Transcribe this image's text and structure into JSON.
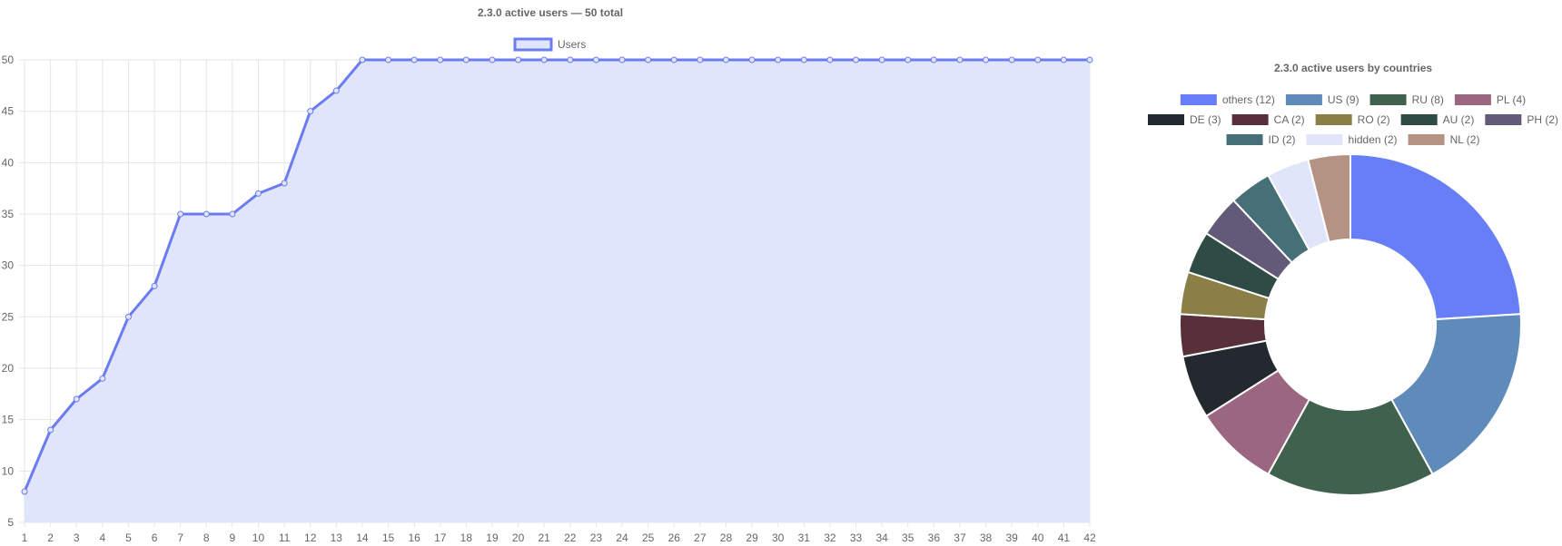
{
  "chart_data": [
    {
      "type": "area",
      "title": "2.3.0 active users — 50 total",
      "x": [
        1,
        2,
        3,
        4,
        5,
        6,
        7,
        8,
        9,
        10,
        11,
        12,
        13,
        14,
        15,
        16,
        17,
        18,
        19,
        20,
        21,
        22,
        23,
        24,
        25,
        26,
        27,
        28,
        29,
        30,
        31,
        32,
        33,
        34,
        35,
        36,
        37,
        38,
        39,
        40,
        41,
        42
      ],
      "series": [
        {
          "name": "Users",
          "values": [
            8,
            14,
            17,
            19,
            25,
            28,
            35,
            35,
            35,
            37,
            38,
            45,
            47,
            50,
            50,
            50,
            50,
            50,
            50,
            50,
            50,
            50,
            50,
            50,
            50,
            50,
            50,
            50,
            50,
            50,
            50,
            50,
            50,
            50,
            50,
            50,
            50,
            50,
            50,
            50,
            50,
            50
          ]
        }
      ],
      "ylim": [
        5,
        50
      ],
      "yticks": [
        5,
        10,
        15,
        20,
        25,
        30,
        35,
        40,
        45,
        50
      ],
      "xlabel": "",
      "ylabel": "",
      "grid": true,
      "legend": "top-center",
      "colors": {
        "line": "#6a7cef",
        "fill": "#e1e5fc"
      }
    },
    {
      "type": "pie",
      "title": "2.3.0 active users by countries",
      "legend": "top",
      "slices": [
        {
          "label": "others (12)",
          "value": 12,
          "color": "#677ef7"
        },
        {
          "label": "US (9)",
          "value": 9,
          "color": "#5e8bb9"
        },
        {
          "label": "RU (8)",
          "value": 8,
          "color": "#40614d"
        },
        {
          "label": "PL (4)",
          "value": 4,
          "color": "#9b6780"
        },
        {
          "label": "DE (3)",
          "value": 3,
          "color": "#24282f"
        },
        {
          "label": "CA (2)",
          "value": 2,
          "color": "#58303a"
        },
        {
          "label": "RO (2)",
          "value": 2,
          "color": "#8a8047"
        },
        {
          "label": "AU (2)",
          "value": 2,
          "color": "#2e4b44"
        },
        {
          "label": "PH (2)",
          "value": 2,
          "color": "#625a78"
        },
        {
          "label": "ID (2)",
          "value": 2,
          "color": "#466f77"
        },
        {
          "label": "hidden (2)",
          "value": 2,
          "color": "#e1e5fa"
        },
        {
          "label": "NL (2)",
          "value": 2,
          "color": "#b49384"
        }
      ]
    }
  ]
}
